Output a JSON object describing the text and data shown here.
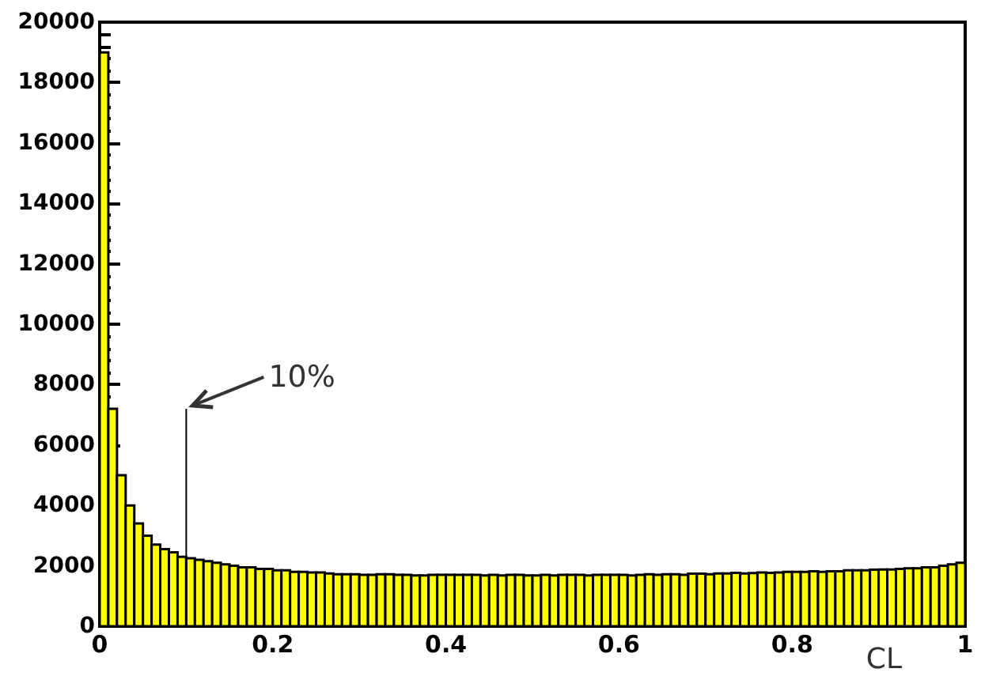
{
  "chart_data": {
    "type": "histogram",
    "xlabel": "CL",
    "color": "#ffff00",
    "bins": [
      0,
      0.01,
      0.02,
      0.03,
      0.04,
      0.05,
      0.06,
      0.07,
      0.08,
      0.09,
      0.1,
      0.11,
      0.12,
      0.13,
      0.14,
      0.15,
      0.16,
      0.17,
      0.18,
      0.19,
      0.2,
      0.21,
      0.22,
      0.23,
      0.24,
      0.25,
      0.26,
      0.27,
      0.28,
      0.29,
      0.3,
      0.31,
      0.32,
      0.33,
      0.34,
      0.35,
      0.36,
      0.37,
      0.38,
      0.39,
      0.4,
      0.41,
      0.42,
      0.43,
      0.44,
      0.45,
      0.46,
      0.47,
      0.48,
      0.49,
      0.5,
      0.51,
      0.52,
      0.53,
      0.54,
      0.55,
      0.56,
      0.57,
      0.58,
      0.59,
      0.6,
      0.61,
      0.62,
      0.63,
      0.64,
      0.65,
      0.66,
      0.67,
      0.68,
      0.69,
      0.7,
      0.71,
      0.72,
      0.73,
      0.74,
      0.75,
      0.76,
      0.77,
      0.78,
      0.79,
      0.8,
      0.81,
      0.82,
      0.83,
      0.84,
      0.85,
      0.86,
      0.87,
      0.88,
      0.89,
      0.9,
      0.91,
      0.92,
      0.93,
      0.94,
      0.95,
      0.96,
      0.97,
      0.98,
      0.99,
      1
    ],
    "values": [
      19000,
      7200,
      5000,
      4000,
      3400,
      3000,
      2700,
      2550,
      2450,
      2300,
      2250,
      2200,
      2150,
      2100,
      2050,
      2000,
      1950,
      1950,
      1900,
      1900,
      1850,
      1850,
      1800,
      1800,
      1780,
      1780,
      1750,
      1720,
      1720,
      1720,
      1700,
      1700,
      1720,
      1720,
      1700,
      1700,
      1680,
      1680,
      1700,
      1700,
      1700,
      1700,
      1700,
      1700,
      1680,
      1700,
      1680,
      1700,
      1700,
      1680,
      1680,
      1700,
      1680,
      1700,
      1700,
      1700,
      1680,
      1700,
      1700,
      1700,
      1700,
      1680,
      1700,
      1720,
      1700,
      1720,
      1720,
      1700,
      1740,
      1740,
      1720,
      1750,
      1750,
      1770,
      1750,
      1760,
      1780,
      1770,
      1780,
      1800,
      1800,
      1800,
      1820,
      1800,
      1820,
      1820,
      1850,
      1850,
      1850,
      1870,
      1880,
      1880,
      1900,
      1920,
      1920,
      1950,
      1950,
      2000,
      2050,
      2100
    ],
    "xlim": [
      0,
      1
    ],
    "xticks": [
      0,
      0.2,
      0.4,
      0.6,
      0.8,
      1
    ],
    "ylim": [
      0,
      20000
    ],
    "yticks": [
      0,
      2000,
      4000,
      6000,
      8000,
      10000,
      12000,
      14000,
      16000,
      18000,
      20000
    ],
    "series": [
      {
        "type": "line",
        "x": [
          0.1,
          0.1
        ],
        "values": [
          0,
          7200
        ],
        "color": "#000000"
      }
    ],
    "annotations": [
      "10%"
    ]
  }
}
